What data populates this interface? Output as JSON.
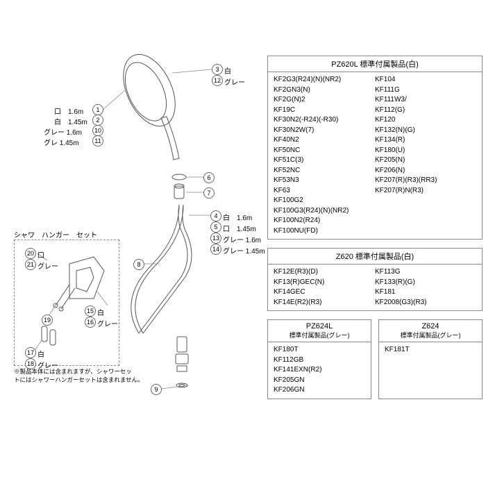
{
  "callouts": {
    "c1": {
      "num": "1",
      "label": "口　1.6m"
    },
    "c2": {
      "num": "2",
      "label": "白　1.45m"
    },
    "c10": {
      "num": "10",
      "label": "グレー 1.6m"
    },
    "c11": {
      "num": "11",
      "label": "グレ  1.45m"
    },
    "c3": {
      "num": "3",
      "label": "白"
    },
    "c12": {
      "num": "12",
      "label": "グレー"
    },
    "c6": {
      "num": "6"
    },
    "c7": {
      "num": "7"
    },
    "c8": {
      "num": "8"
    },
    "c4": {
      "num": "4",
      "label": "白　1.6m"
    },
    "c5": {
      "num": "5",
      "label": "口　1.45m"
    },
    "c13": {
      "num": "13",
      "label": "グレー 1.6m"
    },
    "c14": {
      "num": "14",
      "label": "グレー 1.45m"
    },
    "c9": {
      "num": "9"
    },
    "c20": {
      "num": "20",
      "label": "口"
    },
    "c21": {
      "num": "21",
      "label": "グレー"
    },
    "c19": {
      "num": "19"
    },
    "c15": {
      "num": "15",
      "label": "白"
    },
    "c16": {
      "num": "16",
      "label": "グレー"
    },
    "c17": {
      "num": "17",
      "label": "白"
    },
    "c18": {
      "num": "18",
      "label": "グレー"
    }
  },
  "inset": {
    "title": "シャワ　ハンガー　セット"
  },
  "footnote": {
    "line1": "※製品本体には含まれますが、シャワーセッ",
    "line2": "トにはシャワーハンガーセットは含まれません。"
  },
  "tables": {
    "pz620l": {
      "header": "PZ620L 標準付属製品(白)",
      "col1": [
        "KF2G3(R24)(N)(NR2)",
        "KF2GN3(N)",
        "KF2G(N)2",
        "KF19C",
        "KF30N2(-R24)(-R30)",
        "KF30N2W(7)",
        "KF40N2",
        "KF50NC",
        "KF51C(3)",
        "KF52NC",
        "KF53N3",
        "KF63",
        "KF100G2",
        "KF100G3(R24)(N)(NR2)",
        "KF100N2(R24)",
        "KF100NU(FD)"
      ],
      "col2": [
        "KF104",
        "KF111G",
        "KF111W3/",
        "KF112(G)",
        "KF120",
        "KF132(N)(G)",
        "KF134(R)",
        "KF180(U)",
        "KF205(N)",
        "KF206(N)",
        "KF207(R)(R3)(RR3)",
        "KF207(R)N(R3)"
      ]
    },
    "z620": {
      "header": "Z620 標準付属製品(白)",
      "col1": [
        "KF12E(R3)(D)",
        "KF13(R)GEC(N)",
        "KF14GEC",
        "KF14E(R2)(R3)"
      ],
      "col2": [
        "KF113G",
        "KF133(R)(G)",
        "KF181",
        "KF2008(G3)(R3)"
      ]
    },
    "pz624l": {
      "header": "PZ624L",
      "subheader": "標準付属製品(グレー)",
      "col1": [
        "KF180T",
        "KF112GB",
        "KF141EXN(R2)",
        "KF205GN",
        "KF206GN"
      ]
    },
    "z624": {
      "header": "Z624",
      "subheader": "標準付属製品(グレー)",
      "col1": [
        "KF181T"
      ]
    }
  }
}
